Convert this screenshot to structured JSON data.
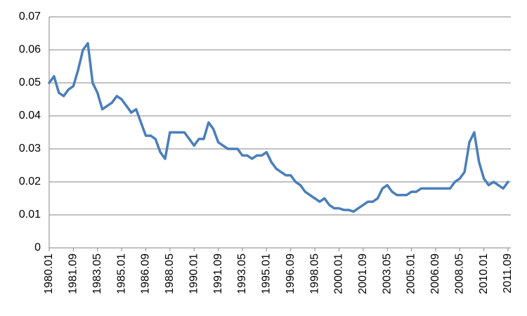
{
  "chart_data": {
    "type": "line",
    "categories": [
      "1980.01",
      null,
      null,
      null,
      null,
      "1981.09",
      null,
      null,
      null,
      null,
      "1983.05",
      null,
      null,
      null,
      null,
      "1985.01",
      null,
      null,
      null,
      null,
      "1986.09",
      null,
      null,
      null,
      null,
      "1988.05",
      null,
      null,
      null,
      null,
      "1990.01",
      null,
      null,
      null,
      null,
      "1991.09",
      null,
      null,
      null,
      null,
      "1993.05",
      null,
      null,
      null,
      null,
      "1995.01",
      null,
      null,
      null,
      null,
      "1996.09",
      null,
      null,
      null,
      null,
      "1998.05",
      null,
      null,
      null,
      null,
      "2000.01",
      null,
      null,
      null,
      null,
      "2001.09",
      null,
      null,
      null,
      null,
      "2003.05",
      null,
      null,
      null,
      null,
      "2005.01",
      null,
      null,
      null,
      null,
      "2006.09",
      null,
      null,
      null,
      null,
      "2008.05",
      null,
      null,
      null,
      null,
      "2010.01",
      null,
      null,
      null,
      null,
      "2011.09"
    ],
    "values": [
      0.05,
      0.052,
      0.047,
      0.046,
      0.048,
      0.049,
      0.054,
      0.06,
      0.062,
      0.05,
      0.047,
      0.042,
      0.043,
      0.044,
      0.046,
      0.045,
      0.043,
      0.041,
      0.042,
      0.038,
      0.034,
      0.034,
      0.033,
      0.029,
      0.027,
      0.035,
      0.035,
      0.035,
      0.035,
      0.033,
      0.031,
      0.033,
      0.033,
      0.038,
      0.036,
      0.032,
      0.031,
      0.03,
      0.03,
      0.03,
      0.028,
      0.028,
      0.027,
      0.028,
      0.028,
      0.029,
      0.026,
      0.024,
      0.023,
      0.022,
      0.022,
      0.02,
      0.019,
      0.017,
      0.016,
      0.015,
      0.014,
      0.015,
      0.013,
      0.012,
      0.012,
      0.0115,
      0.0115,
      0.011,
      0.012,
      0.013,
      0.014,
      0.014,
      0.015,
      0.018,
      0.019,
      0.017,
      0.016,
      0.016,
      0.016,
      0.017,
      0.017,
      0.018,
      0.018,
      0.018,
      0.018,
      0.018,
      0.018,
      0.018,
      0.02,
      0.021,
      0.023,
      0.032,
      0.035,
      0.026,
      0.021,
      0.019,
      0.02,
      0.019,
      0.018,
      0.02
    ],
    "color": "#4a7ebb",
    "ylim": [
      0,
      0.07
    ],
    "yticks": [
      0,
      0.01,
      0.02,
      0.03,
      0.04,
      0.05,
      0.06,
      0.07
    ],
    "grid": true
  }
}
